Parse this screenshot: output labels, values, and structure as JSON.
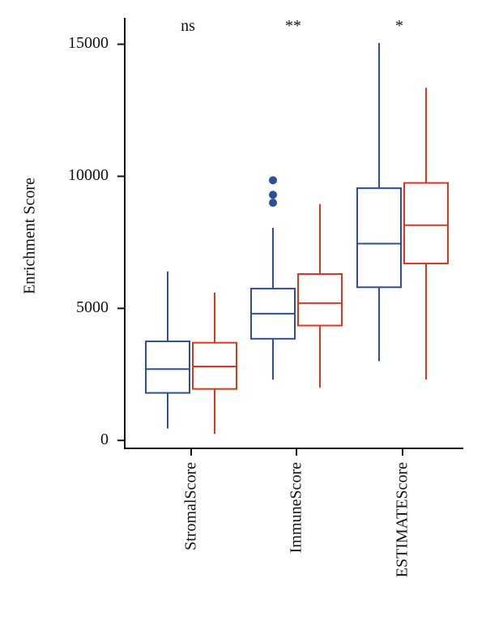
{
  "chart_data": {
    "type": "boxplot",
    "title": "",
    "xlabel": "",
    "ylabel": "Enrichment Score",
    "ylim": [
      -300,
      16000
    ],
    "yticks": [
      0,
      5000,
      10000,
      15000
    ],
    "ytick_labels": [
      "0",
      "5000",
      "10000",
      "15000"
    ],
    "categories": [
      "StromalScore",
      "ImmuneScore",
      "ESTIMATEScore"
    ],
    "significance": [
      "ns",
      "**",
      "*"
    ],
    "grid": false,
    "legend": "none",
    "series": [
      {
        "color": "#2e4e9b",
        "boxes": [
          {
            "whisker_low": 450,
            "q1": 1800,
            "median": 2700,
            "q3": 3750,
            "whisker_high": 6400,
            "outliers": []
          },
          {
            "whisker_low": 2300,
            "q1": 3850,
            "median": 4800,
            "q3": 5750,
            "whisker_high": 8050,
            "outliers": [
              9000,
              9300,
              9850
            ]
          },
          {
            "whisker_low": 3000,
            "q1": 5800,
            "median": 7450,
            "q3": 9550,
            "whisker_high": 15050,
            "outliers": []
          }
        ]
      },
      {
        "color": "#d9381e",
        "boxes": [
          {
            "whisker_low": 250,
            "q1": 1950,
            "median": 2800,
            "q3": 3700,
            "whisker_high": 5600,
            "outliers": []
          },
          {
            "whisker_low": 2000,
            "q1": 4350,
            "median": 5200,
            "q3": 6300,
            "whisker_high": 8950,
            "outliers": []
          },
          {
            "whisker_low": 2300,
            "q1": 6700,
            "median": 8150,
            "q3": 9750,
            "whisker_high": 13350,
            "outliers": []
          }
        ]
      }
    ]
  }
}
